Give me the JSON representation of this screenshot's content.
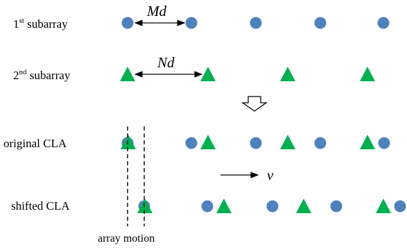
{
  "rows": [
    {
      "id": "sub1",
      "label_main": "1",
      "label_sup": "st",
      "label_rest": " subarray"
    },
    {
      "id": "sub2",
      "label_main": "2",
      "label_sup": "nd",
      "label_rest": " subarray"
    },
    {
      "id": "orig",
      "label_main": "original CLA"
    },
    {
      "id": "shift",
      "label_main": "shifted CLA"
    }
  ],
  "annotations": {
    "spacing_sub1": "Md",
    "spacing_sub2": "Nd",
    "velocity": "v",
    "motion": "array motion"
  },
  "colors": {
    "circle": "#4F81BD",
    "triangle": "#00B050",
    "ink": "#000000"
  },
  "icons": {
    "circle_element": "circle-sensor-icon",
    "triangle_element": "triangle-sensor-icon",
    "transition": "hollow-down-arrow-icon"
  }
}
